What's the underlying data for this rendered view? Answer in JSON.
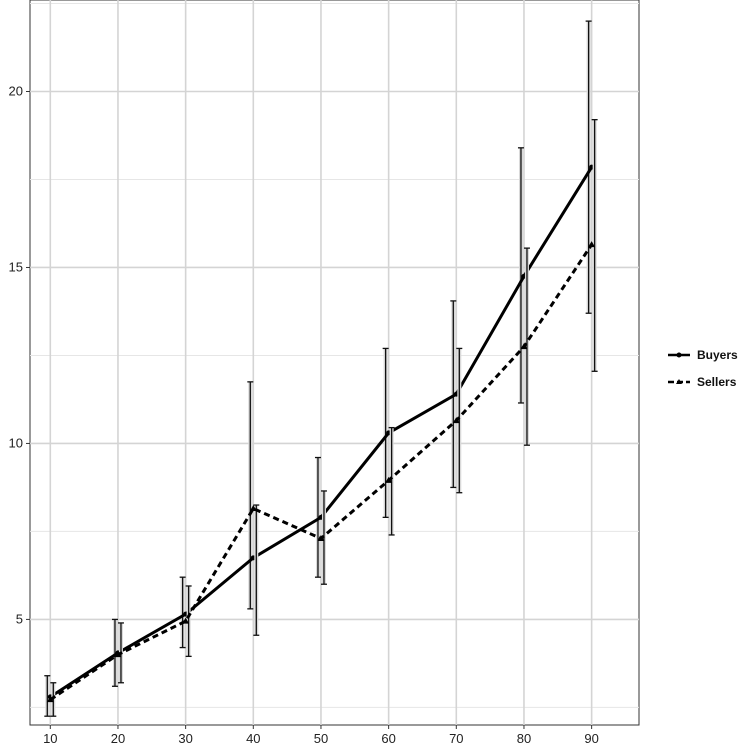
{
  "chart_data": {
    "type": "line",
    "title": "",
    "xlabel": "",
    "ylabel": "",
    "x": [
      10,
      20,
      30,
      40,
      50,
      60,
      70,
      80,
      90
    ],
    "xlim": [
      7,
      97
    ],
    "ylim": [
      2.0,
      22.6
    ],
    "x_ticks": [
      10,
      20,
      30,
      40,
      50,
      60,
      70,
      80,
      90
    ],
    "y_ticks": [
      5,
      10,
      15,
      20
    ],
    "grid": true,
    "legend_position": "right",
    "series": [
      {
        "name": "Buyers",
        "line_style": "solid",
        "marker": "circle",
        "color": "#000000",
        "values": [
          2.8,
          4.05,
          5.15,
          6.75,
          7.9,
          10.3,
          11.4,
          14.75,
          17.85
        ],
        "error_low": [
          2.25,
          3.1,
          4.2,
          5.3,
          6.2,
          7.9,
          8.75,
          11.15,
          13.7
        ],
        "error_high": [
          3.4,
          5.0,
          6.2,
          11.75,
          9.6,
          12.7,
          14.05,
          18.4,
          22.0
        ]
      },
      {
        "name": "Sellers",
        "line_style": "dashed",
        "marker": "triangle",
        "color": "#000000",
        "values": [
          2.72,
          4.0,
          4.95,
          8.15,
          7.3,
          8.95,
          10.65,
          12.75,
          15.65
        ],
        "error_low": [
          2.25,
          3.2,
          3.95,
          4.55,
          6.0,
          7.4,
          8.6,
          9.95,
          12.05
        ],
        "error_high": [
          3.2,
          4.9,
          5.95,
          8.25,
          8.65,
          10.45,
          12.7,
          15.55,
          19.2
        ]
      }
    ]
  }
}
